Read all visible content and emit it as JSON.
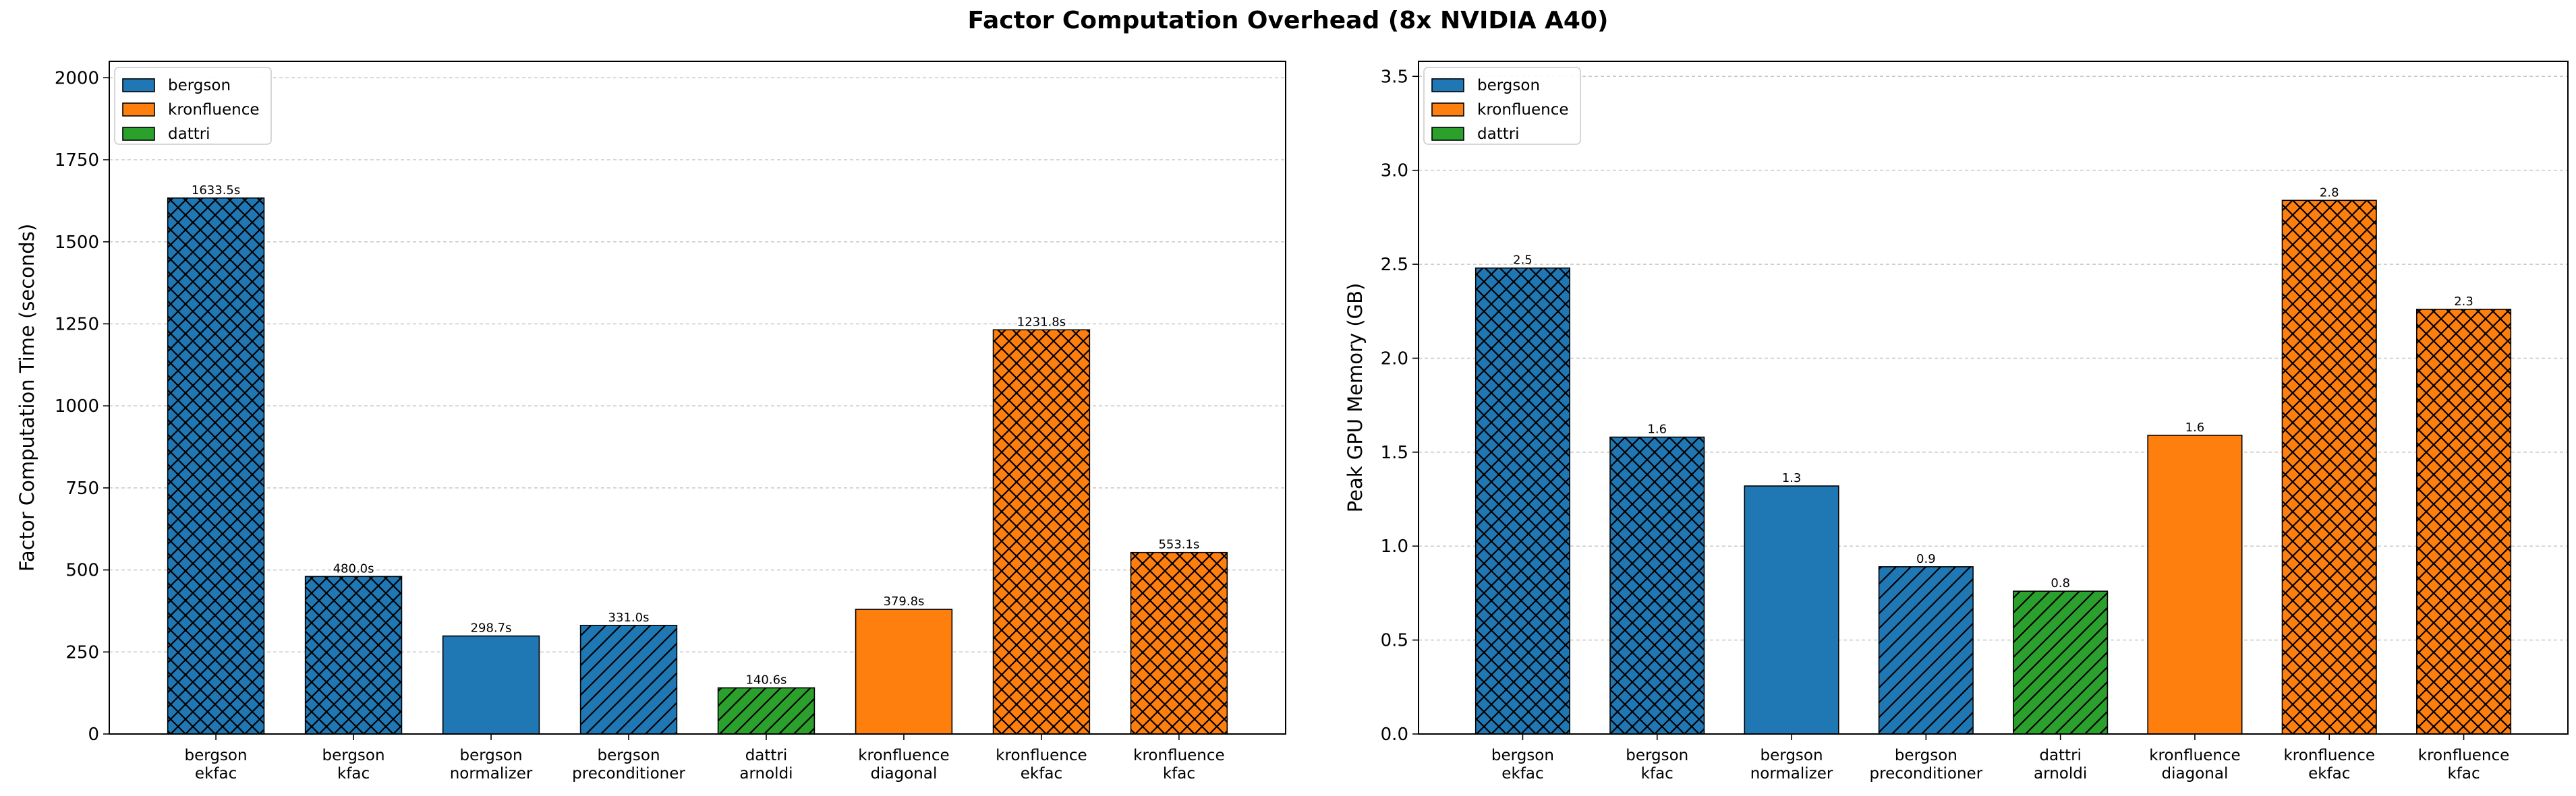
{
  "title": "Factor Computation Overhead (8x NVIDIA A40)",
  "colors": {
    "bergson": "#1f77b4",
    "kronfluence": "#ff7f0e",
    "dattri": "#2ca02c"
  },
  "legend": [
    "bergson",
    "kronfluence",
    "dattri"
  ],
  "chart_data": [
    {
      "type": "bar",
      "title": "",
      "xlabel": "",
      "ylabel": "Factor Computation Time (seconds)",
      "ylim": [
        0,
        2050
      ],
      "yticks": [
        0,
        250,
        500,
        750,
        1000,
        1250,
        1500,
        1750,
        2000
      ],
      "ytick_labels": [
        "0",
        "250",
        "500",
        "750",
        "1000",
        "1250",
        "1500",
        "1750",
        "2000"
      ],
      "grid": "y-dashed",
      "legend_placement": "upper-left",
      "categories": [
        [
          "bergson",
          "ekfac"
        ],
        [
          "bergson",
          "kfac"
        ],
        [
          "bergson",
          "normalizer"
        ],
        [
          "bergson",
          "preconditioner"
        ],
        [
          "dattri",
          "arnoldi"
        ],
        [
          "kronfluence",
          "diagonal"
        ],
        [
          "kronfluence",
          "ekfac"
        ],
        [
          "kronfluence",
          "kfac"
        ]
      ],
      "groups": [
        "bergson",
        "bergson",
        "bergson",
        "bergson",
        "dattri",
        "kronfluence",
        "kronfluence",
        "kronfluence"
      ],
      "hatches": [
        "cross",
        "cross",
        "none",
        "diag",
        "diag",
        "none",
        "cross",
        "cross"
      ],
      "values": [
        1633.5,
        480.0,
        298.7,
        331.0,
        140.6,
        379.8,
        1231.8,
        553.1
      ],
      "labels": [
        "1633.5s",
        "480.0s",
        "298.7s",
        "331.0s",
        "140.6s",
        "379.8s",
        "1231.8s",
        "553.1s"
      ]
    },
    {
      "type": "bar",
      "title": "",
      "xlabel": "",
      "ylabel": "Peak GPU Memory (GB)",
      "ylim": [
        0,
        3.58
      ],
      "yticks": [
        0,
        0.5,
        1.0,
        1.5,
        2.0,
        2.5,
        3.0,
        3.5
      ],
      "ytick_labels": [
        "0.0",
        "0.5",
        "1.0",
        "1.5",
        "2.0",
        "2.5",
        "3.0",
        "3.5"
      ],
      "grid": "y-dashed",
      "legend_placement": "upper-left",
      "categories": [
        [
          "bergson",
          "ekfac"
        ],
        [
          "bergson",
          "kfac"
        ],
        [
          "bergson",
          "normalizer"
        ],
        [
          "bergson",
          "preconditioner"
        ],
        [
          "dattri",
          "arnoldi"
        ],
        [
          "kronfluence",
          "diagonal"
        ],
        [
          "kronfluence",
          "ekfac"
        ],
        [
          "kronfluence",
          "kfac"
        ]
      ],
      "groups": [
        "bergson",
        "bergson",
        "bergson",
        "bergson",
        "dattri",
        "kronfluence",
        "kronfluence",
        "kronfluence"
      ],
      "hatches": [
        "cross",
        "cross",
        "none",
        "diag",
        "diag",
        "none",
        "cross",
        "cross"
      ],
      "values": [
        2.48,
        1.58,
        1.32,
        0.89,
        0.76,
        1.59,
        2.84,
        2.26
      ],
      "labels": [
        "2.5",
        "1.6",
        "1.3",
        "0.9",
        "0.8",
        "1.6",
        "2.8",
        "2.3"
      ]
    }
  ]
}
